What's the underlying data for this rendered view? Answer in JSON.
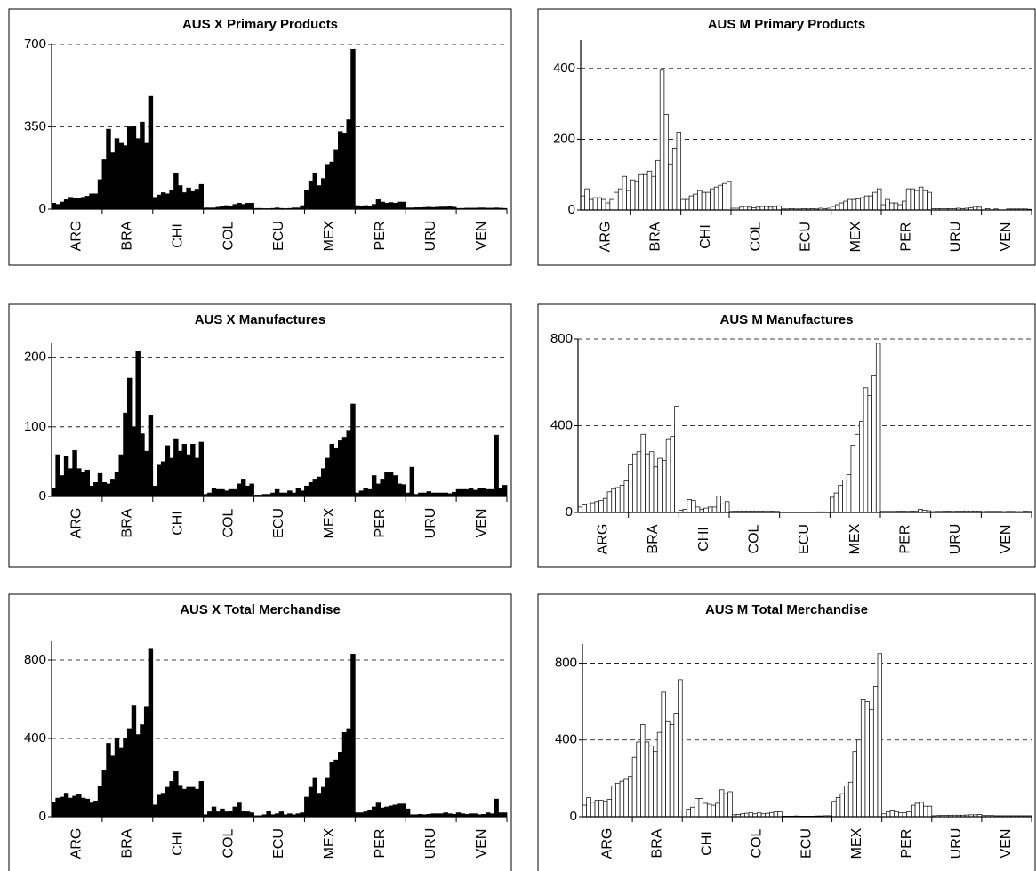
{
  "chart_data": [
    {
      "type": "bar",
      "title": "AUS X Primary Products",
      "categories": [
        "ARG",
        "BRA",
        "CHI",
        "COL",
        "ECU",
        "MEX",
        "PER",
        "URU",
        "VEN"
      ],
      "values": [
        [
          25,
          20,
          30,
          40,
          50,
          48,
          45,
          50,
          55,
          65,
          65,
          125
        ],
        [
          210,
          340,
          240,
          300,
          280,
          270,
          350,
          350,
          300,
          370,
          280,
          480
        ],
        [
          50,
          60,
          70,
          65,
          80,
          150,
          100,
          70,
          90,
          75,
          85,
          105
        ],
        [
          5,
          5,
          5,
          8,
          10,
          15,
          10,
          20,
          25,
          20,
          25,
          25
        ],
        [
          3,
          3,
          2,
          2,
          3,
          5,
          3,
          2,
          3,
          5,
          5,
          15
        ],
        [
          80,
          120,
          150,
          100,
          130,
          190,
          200,
          250,
          330,
          320,
          380,
          680
        ],
        [
          15,
          12,
          15,
          12,
          20,
          40,
          30,
          25,
          28,
          25,
          30,
          30
        ],
        [
          5,
          5,
          6,
          6,
          7,
          8,
          7,
          8,
          9,
          9,
          10,
          8
        ],
        [
          3,
          3,
          4,
          4,
          4,
          5,
          5,
          4,
          4,
          5,
          4,
          3
        ]
      ],
      "color": "#000000",
      "ylim": [
        0,
        700
      ],
      "yticks": [
        0,
        350,
        700
      ],
      "grid": true
    },
    {
      "type": "bar",
      "title": "AUS M Primary Products",
      "categories": [
        "ARG",
        "BRA",
        "CHI",
        "COL",
        "ECU",
        "MEX",
        "PER",
        "URU",
        "VEN"
      ],
      "values": [
        [
          40,
          60,
          30,
          35,
          35,
          30,
          20,
          30,
          50,
          60,
          95,
          55
        ],
        [
          85,
          80,
          100,
          100,
          110,
          95,
          140,
          395,
          270,
          130,
          175,
          220
        ],
        [
          30,
          30,
          40,
          45,
          55,
          50,
          50,
          60,
          65,
          70,
          75,
          80
        ],
        [
          5,
          5,
          8,
          10,
          8,
          6,
          8,
          10,
          10,
          8,
          10,
          12
        ],
        [
          3,
          3,
          4,
          3,
          3,
          4,
          3,
          4,
          3,
          5,
          4,
          5
        ],
        [
          10,
          15,
          20,
          25,
          30,
          30,
          32,
          35,
          40,
          40,
          50,
          60
        ],
        [
          15,
          30,
          20,
          20,
          15,
          25,
          60,
          60,
          55,
          65,
          55,
          50
        ],
        [
          4,
          4,
          4,
          4,
          4,
          4,
          5,
          4,
          5,
          6,
          10,
          8
        ],
        [
          0,
          4,
          0,
          3,
          0,
          0,
          3,
          3,
          3,
          3,
          3,
          2
        ]
      ],
      "color": "#ffffff",
      "ylim": [
        0,
        480
      ],
      "yticks": [
        0,
        200,
        400
      ],
      "grid": true
    },
    {
      "type": "bar",
      "title": "AUS  X  Manufactures",
      "categories": [
        "ARG",
        "BRA",
        "CHI",
        "COL",
        "ECU",
        "MEX",
        "PER",
        "URU",
        "VEN"
      ],
      "values": [
        [
          12,
          60,
          30,
          58,
          40,
          66,
          40,
          35,
          38,
          15,
          20,
          33
        ],
        [
          20,
          18,
          25,
          35,
          60,
          120,
          170,
          100,
          208,
          90,
          65,
          117
        ],
        [
          15,
          45,
          50,
          73,
          55,
          83,
          65,
          75,
          60,
          75,
          55,
          78
        ],
        [
          3,
          5,
          12,
          10,
          10,
          8,
          10,
          10,
          18,
          25,
          15,
          18
        ],
        [
          2,
          2,
          3,
          3,
          5,
          10,
          5,
          5,
          8,
          5,
          12,
          8
        ],
        [
          15,
          20,
          25,
          28,
          40,
          55,
          75,
          70,
          80,
          85,
          95,
          133
        ],
        [
          5,
          8,
          12,
          10,
          30,
          18,
          25,
          35,
          35,
          30,
          18,
          17
        ],
        [
          5,
          42,
          3,
          5,
          5,
          7,
          5,
          5,
          5,
          5,
          4,
          6
        ],
        [
          10,
          10,
          10,
          11,
          9,
          12,
          12,
          10,
          10,
          88,
          12,
          16
        ]
      ],
      "color": "#000000",
      "ylim": [
        0,
        220
      ],
      "yticks": [
        0,
        100,
        200
      ],
      "grid": true
    },
    {
      "type": "bar",
      "title": "AUS  M  Manufactures",
      "categories": [
        "ARG",
        "BRA",
        "CHI",
        "COL",
        "ECU",
        "MEX",
        "PER",
        "URU",
        "VEN"
      ],
      "values": [
        [
          25,
          35,
          40,
          45,
          50,
          55,
          65,
          95,
          110,
          115,
          125,
          145
        ],
        [
          220,
          270,
          280,
          360,
          270,
          280,
          210,
          250,
          240,
          340,
          350,
          490
        ],
        [
          10,
          15,
          60,
          55,
          25,
          15,
          20,
          25,
          25,
          75,
          40,
          50
        ],
        [
          5,
          6,
          6,
          7,
          6,
          6,
          7,
          6,
          7,
          7,
          6,
          5
        ],
        [
          2,
          2,
          2,
          2,
          2,
          2,
          2,
          2,
          2,
          3,
          3,
          2
        ],
        [
          70,
          90,
          125,
          150,
          175,
          310,
          360,
          420,
          575,
          540,
          630,
          780
        ],
        [
          5,
          5,
          5,
          5,
          6,
          6,
          5,
          6,
          7,
          15,
          10,
          8
        ],
        [
          4,
          5,
          5,
          6,
          6,
          5,
          6,
          6,
          7,
          7,
          6,
          6
        ],
        [
          4,
          5,
          5,
          5,
          5,
          4,
          5,
          5,
          4,
          4,
          6,
          5
        ]
      ],
      "color": "#ffffff",
      "ylim": [
        0,
        800
      ],
      "yticks": [
        0,
        400,
        800
      ],
      "grid": true
    },
    {
      "type": "bar",
      "title": "AUS X Total Merchandise",
      "categories": [
        "ARG",
        "BRA",
        "CHI",
        "COL",
        "ECU",
        "MEX",
        "PER",
        "URU",
        "VEN"
      ],
      "values": [
        [
          75,
          95,
          100,
          120,
          95,
          105,
          115,
          95,
          90,
          70,
          80,
          155
        ],
        [
          235,
          375,
          310,
          400,
          350,
          400,
          450,
          570,
          420,
          470,
          560,
          860
        ],
        [
          60,
          110,
          120,
          150,
          180,
          230,
          160,
          140,
          150,
          150,
          140,
          180
        ],
        [
          10,
          25,
          50,
          25,
          40,
          25,
          30,
          50,
          70,
          30,
          25,
          20
        ],
        [
          5,
          5,
          10,
          30,
          10,
          15,
          25,
          10,
          15,
          10,
          15,
          20
        ],
        [
          100,
          150,
          200,
          120,
          150,
          200,
          280,
          290,
          330,
          430,
          450,
          830
        ],
        [
          20,
          20,
          25,
          35,
          50,
          70,
          45,
          50,
          55,
          60,
          65,
          65
        ],
        [
          40,
          10,
          10,
          12,
          10,
          12,
          15,
          15,
          15,
          20,
          15,
          12
        ],
        [
          20,
          15,
          12,
          15,
          15,
          10,
          12,
          20,
          15,
          90,
          20,
          20
        ]
      ],
      "color": "#000000",
      "ylim": [
        0,
        900
      ],
      "yticks": [
        0,
        400,
        800
      ],
      "grid": true
    },
    {
      "type": "bar",
      "title": "AUS M Total Merchandise",
      "categories": [
        "ARG",
        "BRA",
        "CHI",
        "COL",
        "ECU",
        "MEX",
        "PER",
        "URU",
        "VEN"
      ],
      "values": [
        [
          60,
          100,
          75,
          85,
          85,
          80,
          90,
          160,
          175,
          185,
          195,
          210
        ],
        [
          310,
          390,
          480,
          390,
          370,
          340,
          440,
          650,
          500,
          480,
          540,
          715
        ],
        [
          30,
          40,
          50,
          95,
          95,
          70,
          65,
          60,
          70,
          140,
          120,
          130
        ],
        [
          10,
          12,
          15,
          18,
          20,
          15,
          20,
          15,
          18,
          22,
          25,
          25
        ],
        [
          3,
          3,
          3,
          4,
          3,
          3,
          3,
          3,
          4,
          4,
          5,
          5
        ],
        [
          80,
          100,
          120,
          160,
          180,
          340,
          400,
          610,
          600,
          560,
          680,
          850
        ],
        [
          15,
          25,
          35,
          25,
          20,
          20,
          25,
          60,
          70,
          75,
          55,
          55
        ],
        [
          5,
          6,
          7,
          7,
          7,
          8,
          8,
          8,
          9,
          10,
          10,
          12
        ],
        [
          6,
          6,
          6,
          5,
          5,
          5,
          5,
          5,
          5,
          5,
          5,
          5
        ]
      ],
      "color": "#ffffff",
      "ylim": [
        0,
        900
      ],
      "yticks": [
        0,
        400,
        800
      ],
      "grid": true
    }
  ]
}
